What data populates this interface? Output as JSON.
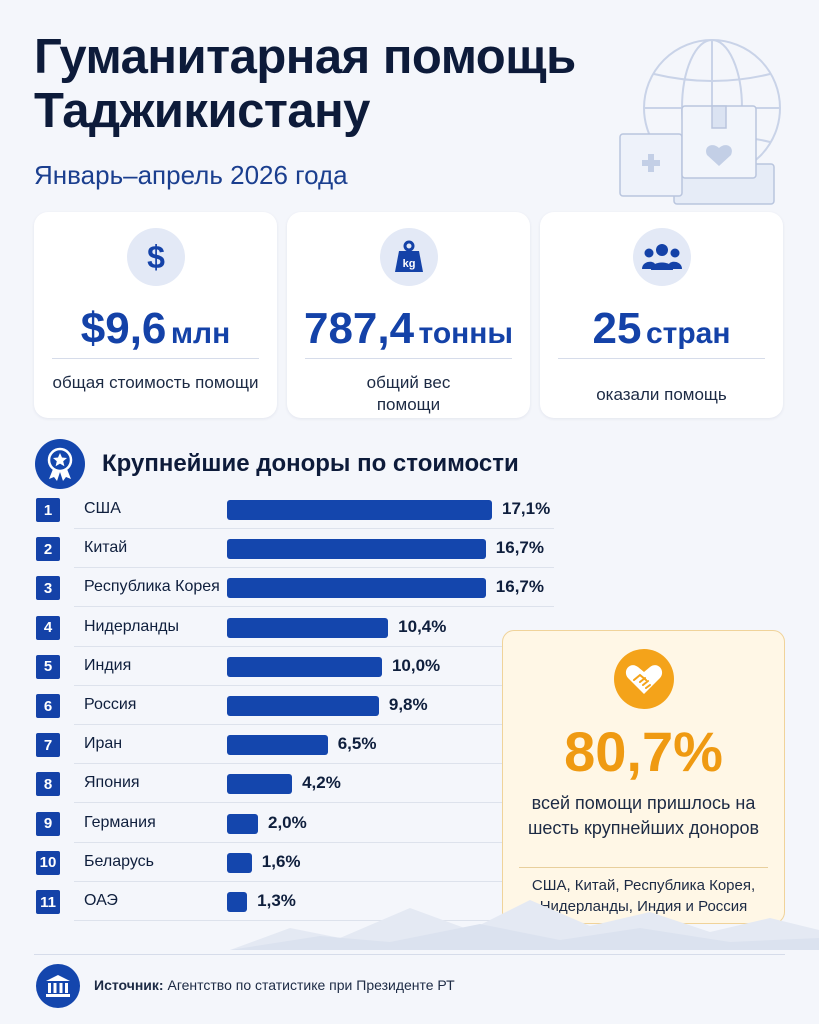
{
  "header": {
    "title": "Гуманитарная помощь Таджикистану",
    "subtitle": "Январь–апрель 2026 года"
  },
  "stats": [
    {
      "icon": "dollar-icon",
      "value": "$9,6",
      "unit": "млн",
      "caption": "общая стоимость помощи"
    },
    {
      "icon": "weight-icon",
      "icon_text": "kg",
      "value": "787,4",
      "unit": "тонны",
      "caption": "общий вес помощи"
    },
    {
      "icon": "people-icon",
      "value": "25",
      "unit": "стран",
      "caption": "оказали помощь"
    }
  ],
  "colors": {
    "accent": "#1446ad",
    "title": "#0d1b3a",
    "highlight": "#ef9a12",
    "highlight_bg": "#fff7e6"
  },
  "chart_data": {
    "type": "bar",
    "orientation": "horizontal",
    "title": "Крупнейшие доноры по стоимости",
    "categories": [
      "США",
      "Китай",
      "Республика Корея",
      "Нидерланды",
      "Индия",
      "Россия",
      "Иран",
      "Япония",
      "Германия",
      "Беларусь",
      "ОАЭ"
    ],
    "ranks": [
      "1",
      "2",
      "3",
      "4",
      "5",
      "6",
      "7",
      "8",
      "9",
      "10",
      "11"
    ],
    "values": [
      17.1,
      16.7,
      16.7,
      10.4,
      10.0,
      9.8,
      6.5,
      4.2,
      2.0,
      1.6,
      1.3
    ],
    "value_labels": [
      "17,1%",
      "16,7%",
      "16,7%",
      "10,4%",
      "10,0%",
      "9,8%",
      "6,5%",
      "4,2%",
      "2,0%",
      "1,6%",
      "1,3%"
    ],
    "unit": "%",
    "grid": false
  },
  "highlight": {
    "value": "80,7%",
    "description": "всей помощи пришлось на шесть крупнейших доноров",
    "list": "США, Китай, Республика Корея, Нидерланды, Индия и Россия"
  },
  "footer": {
    "source_label": "Источник:",
    "source_text": "Агентство по статистике при Президенте РТ"
  }
}
